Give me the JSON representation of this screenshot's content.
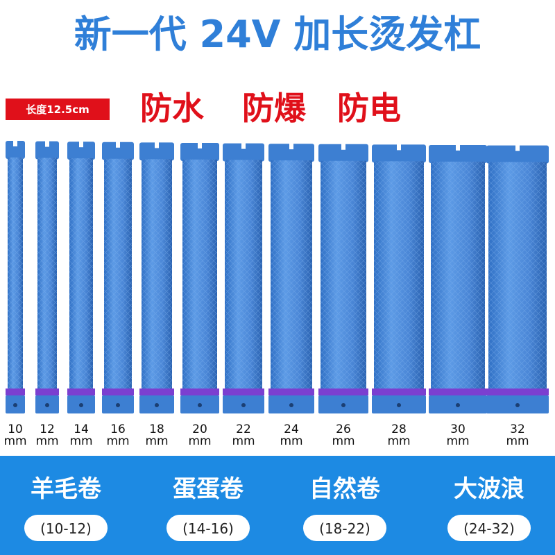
{
  "title": "新一代 24V 加长烫发杠",
  "badge": "长度12.5cm",
  "features": [
    "防水",
    "防爆",
    "防电"
  ],
  "rods": [
    {
      "size": "10",
      "unit": "mm"
    },
    {
      "size": "12",
      "unit": "mm"
    },
    {
      "size": "14",
      "unit": "mm"
    },
    {
      "size": "16",
      "unit": "mm"
    },
    {
      "size": "18",
      "unit": "mm"
    },
    {
      "size": "20",
      "unit": "mm"
    },
    {
      "size": "22",
      "unit": "mm"
    },
    {
      "size": "24",
      "unit": "mm"
    },
    {
      "size": "26",
      "unit": "mm"
    },
    {
      "size": "28",
      "unit": "mm"
    },
    {
      "size": "30",
      "unit": "mm"
    },
    {
      "size": "32",
      "unit": "mm"
    }
  ],
  "groups": [
    {
      "name": "羊毛卷",
      "range": "(10-12)"
    },
    {
      "name": "蛋蛋卷",
      "range": "(14-16)"
    },
    {
      "name": "自然卷",
      "range": "(18-22)"
    },
    {
      "name": "大波浪",
      "range": "(24-32)"
    }
  ]
}
